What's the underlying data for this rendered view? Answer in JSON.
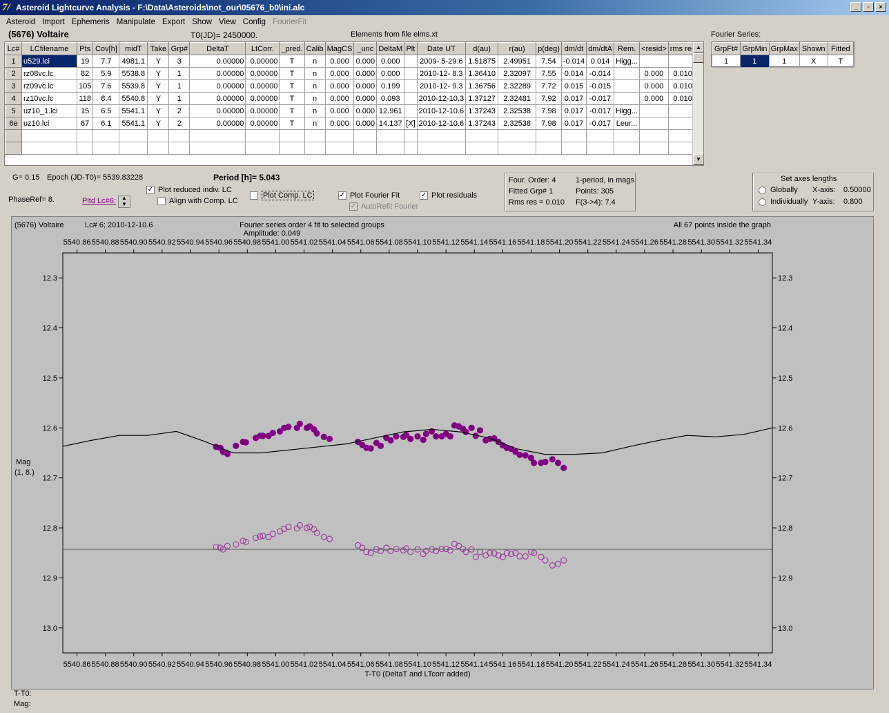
{
  "window": {
    "title": "Asteroid Lightcurve Analysis - F:\\Data\\Asteroids\\not_our\\05676_b0\\ini.alc"
  },
  "menu": [
    "Asteroid",
    "Import",
    "Ephemeris",
    "Manipulate",
    "Export",
    "Show",
    "View",
    "Config",
    "FourierFit"
  ],
  "header": {
    "asteroid": "(5676) Voltaire",
    "t0": "T0(JD)= 2450000.",
    "elements": "Elements from file elms.xt",
    "fourier_label": "Fourier Series:"
  },
  "table": {
    "columns": [
      "Lc#",
      "LCfilename",
      "Pts",
      "Cov[h]",
      "midT",
      "Take",
      "Grp#",
      "DeltaT",
      "LtCorr.",
      "_pred.",
      "Calib",
      "MagCS",
      "_unc",
      "DeltaM",
      "Plt",
      "Date UT",
      "d(au)",
      "r(au)",
      "p(deg)",
      "dm/dt",
      "dm/dtA",
      "Rem.",
      "<resid>",
      "rms res"
    ],
    "rows": [
      [
        "1",
        "u529.lci",
        "19",
        "7.7",
        "4981.1",
        "Y",
        "3",
        "0.00000",
        "0.00000",
        "T",
        "n",
        "0.000",
        "0.000",
        "0.000",
        "",
        "2009- 5-29.6",
        "1.51875",
        "2.49951",
        "7.54",
        "-0.014",
        "0.014",
        "Higg...",
        "",
        ""
      ],
      [
        "2",
        "rz08vc.lc",
        "82",
        "5.9",
        "5538.8",
        "Y",
        "1",
        "0.00000",
        "0.00000",
        "T",
        "n",
        "0.000",
        "0.000",
        "0.000",
        "",
        "2010-12- 8.3",
        "1.36410",
        "2.32097",
        "7.55",
        "0.014",
        "-0.014",
        "",
        "0.000",
        "0.010"
      ],
      [
        "3",
        "rz09vc.lc",
        "105",
        "7.6",
        "5539.8",
        "Y",
        "1",
        "0.00000",
        "0.00000",
        "T",
        "n",
        "0.000",
        "0.000",
        "0.199",
        "",
        "2010-12- 9.3",
        "1.36756",
        "2.32289",
        "7.72",
        "0.015",
        "-0.015",
        "",
        "0.000",
        "0.010"
      ],
      [
        "4",
        "rz10vc.lc",
        "118",
        "8.4",
        "5540.8",
        "Y",
        "1",
        "0.00000",
        "0.00000",
        "T",
        "n",
        "0.000",
        "0.000",
        "0.093",
        "",
        "2010-12-10.3",
        "1.37127",
        "2.32481",
        "7.92",
        "0.017",
        "-0.017",
        "",
        "0.000",
        "0.010"
      ],
      [
        "5",
        "uz10_1.lci",
        "15",
        "6.5",
        "5541.1",
        "Y",
        "2",
        "0.00000",
        "0.00000",
        "T",
        "n",
        "0.000",
        "0.000",
        "12.961",
        "",
        "2010-12-10.6",
        "1.37243",
        "2.32538",
        "7.98",
        "0.017",
        "-0.017",
        "Higg...",
        "",
        ""
      ],
      [
        "6e",
        "uz10.lci",
        "67",
        "6.1",
        "5541.1",
        "Y",
        "2",
        "0.00000",
        "0.00000",
        "T",
        "n",
        "0.000",
        "0.000",
        "14.137",
        "[X]",
        "2010-12-10.6",
        "1.37243",
        "2.32538",
        "7.98",
        "0.017",
        "-0.017",
        "Leur...",
        "",
        ""
      ]
    ]
  },
  "fourier_table": {
    "columns": [
      "GrpFt#",
      "GrpMin",
      "GrpMax",
      "Shown",
      "Fitted"
    ],
    "row": [
      "1",
      "1",
      "1",
      "X",
      "T"
    ]
  },
  "controls": {
    "g": "G= 0.15",
    "epoch": "Epoch (JD-T0)= 5539.83228",
    "period": "Period [h]= 5.043",
    "phaseref": "PhaseRef= 8.",
    "pltd_lc": "Pltd Lc#6:",
    "plot_reduced": "Plot reduced indiv. LC",
    "align_comp": "Align with Comp. LC",
    "plot_comp": "Plot Comp. LC",
    "plot_fourier": "Plot Fourier Fit",
    "autorefit": "AutoRefit Fourier",
    "plot_residuals": "Plot residuals"
  },
  "fit_info": {
    "order": "Four. Order:  4",
    "one_period": "1-period, in mags",
    "fitted_grp": "Fitted Grp# 1",
    "points": "Points: 305",
    "rms": "Rms res     = 0.010",
    "f34": "F(3->4):   7.4"
  },
  "axes_box": {
    "title": "Set axes lengths",
    "globally": "Globally",
    "individually": "Individually",
    "xaxis_label": "X-axis:",
    "xaxis_val": "0.50000",
    "yaxis_label": "Y-axis:",
    "yaxis_val": "0.800"
  },
  "plot_header": {
    "object": "(5676) Voltaire",
    "lc": "Lc# 6; 2010-12-10.6",
    "fit": "Fourier series order 4 fit to selected groups",
    "amp": "Amplitude: 0.049",
    "inside": "All 67 points inside the graph"
  },
  "plot_labels": {
    "ylabel1": "Mag",
    "ylabel2": "(1, 8.)",
    "xlabel": "T-T0 (DeltaT and LTcorr added)"
  },
  "status": {
    "t": "T-T0:",
    "mag": "Mag:"
  },
  "chart_data": {
    "type": "scatter",
    "xlabel": "T-T0 (DeltaT and LTcorr added)",
    "ylabel": "Mag",
    "xlim": [
      5540.85,
      5541.35
    ],
    "ylim": [
      12.25,
      13.05
    ],
    "y_inverted": true,
    "x_ticks": [
      "5540.86",
      "5540.88",
      "5540.90",
      "5540.92",
      "5540.94",
      "5540.96",
      "5540.98",
      "5541.00",
      "5541.02",
      "5541.04",
      "5541.06",
      "5541.08",
      "5541.10",
      "5541.12",
      "5541.14",
      "5541.16",
      "5541.18",
      "5541.20",
      "5541.22",
      "5541.24",
      "5541.26",
      "5541.28",
      "5541.30",
      "5541.32",
      "5541.34"
    ],
    "y_ticks": [
      "12.3",
      "12.4",
      "12.5",
      "12.6",
      "12.7",
      "12.8",
      "12.9",
      "13.0"
    ],
    "series": [
      {
        "name": "data",
        "color": "#800080",
        "filled": true,
        "x": [
          5540.958,
          5540.961,
          5540.963,
          5540.966,
          5540.972,
          5540.977,
          5540.979,
          5540.986,
          5540.989,
          5540.991,
          5540.995,
          5540.998,
          5541.003,
          5541.006,
          5541.009,
          5541.015,
          5541.017,
          5541.022,
          5541.024,
          5541.027,
          5541.029,
          5541.034,
          5541.038,
          5541.058,
          5541.061,
          5541.064,
          5541.067,
          5541.071,
          5541.074,
          5541.078,
          5541.081,
          5541.085,
          5541.09,
          5541.092,
          5541.095,
          5541.1,
          5541.104,
          5541.106,
          5541.11,
          5541.113,
          5541.117,
          5541.12,
          5541.123,
          5541.126,
          5541.129,
          5541.132,
          5541.134,
          5541.138,
          5541.141,
          5541.144,
          5541.148,
          5541.151,
          5541.154,
          5541.157,
          5541.16,
          5541.163,
          5541.166,
          5541.169,
          5541.172,
          5541.176,
          5541.18,
          5541.182,
          5541.187,
          5541.19,
          5541.195,
          5541.199,
          5541.203
        ],
        "y": [
          12.638,
          12.64,
          12.648,
          12.652,
          12.636,
          12.628,
          12.629,
          12.62,
          12.616,
          12.616,
          12.616,
          12.61,
          12.607,
          12.6,
          12.598,
          12.6,
          12.592,
          12.6,
          12.597,
          12.603,
          12.611,
          12.618,
          12.622,
          12.628,
          12.634,
          12.64,
          12.641,
          12.63,
          12.636,
          12.62,
          12.625,
          12.617,
          12.618,
          12.614,
          12.622,
          12.617,
          12.624,
          12.612,
          12.607,
          12.617,
          12.617,
          12.612,
          12.617,
          12.595,
          12.597,
          12.602,
          12.608,
          12.6,
          12.616,
          12.605,
          12.625,
          12.622,
          12.621,
          12.628,
          12.635,
          12.64,
          12.642,
          12.648,
          12.654,
          12.655,
          12.66,
          12.67,
          12.67,
          12.668,
          12.663,
          12.67,
          12.68
        ]
      },
      {
        "name": "residuals",
        "color": "#a040a0",
        "filled": false,
        "x": [
          5540.958,
          5540.961,
          5540.963,
          5540.966,
          5540.972,
          5540.977,
          5540.979,
          5540.986,
          5540.989,
          5540.991,
          5540.995,
          5540.998,
          5541.003,
          5541.006,
          5541.009,
          5541.015,
          5541.017,
          5541.022,
          5541.024,
          5541.027,
          5541.029,
          5541.034,
          5541.038,
          5541.058,
          5541.061,
          5541.064,
          5541.067,
          5541.071,
          5541.074,
          5541.078,
          5541.081,
          5541.085,
          5541.09,
          5541.092,
          5541.095,
          5541.1,
          5541.104,
          5541.106,
          5541.11,
          5541.113,
          5541.117,
          5541.12,
          5541.123,
          5541.126,
          5541.129,
          5541.132,
          5541.134,
          5541.138,
          5541.141,
          5541.144,
          5541.148,
          5541.151,
          5541.154,
          5541.157,
          5541.16,
          5541.163,
          5541.166,
          5541.169,
          5541.172,
          5541.176,
          5541.18,
          5541.182,
          5541.187,
          5541.19,
          5541.195,
          5541.199,
          5541.203
        ],
        "y": [
          12.838,
          12.84,
          12.843,
          12.836,
          12.833,
          12.826,
          12.828,
          12.82,
          12.817,
          12.816,
          12.818,
          12.812,
          12.807,
          12.802,
          12.798,
          12.801,
          12.795,
          12.8,
          12.798,
          12.803,
          12.81,
          12.818,
          12.822,
          12.835,
          12.84,
          12.848,
          12.85,
          12.843,
          12.846,
          12.84,
          12.846,
          12.842,
          12.845,
          12.841,
          12.848,
          12.843,
          12.852,
          12.846,
          12.843,
          12.846,
          12.842,
          12.842,
          12.845,
          12.832,
          12.836,
          12.842,
          12.848,
          12.843,
          12.858,
          12.848,
          12.855,
          12.85,
          12.851,
          12.855,
          12.858,
          12.85,
          12.852,
          12.85,
          12.857,
          12.857,
          12.848,
          12.85,
          12.858,
          12.865,
          12.875,
          12.872,
          12.865
        ]
      },
      {
        "name": "fourier_fit",
        "color": "#000000",
        "type": "line",
        "x": [
          5540.85,
          5540.87,
          5540.89,
          5540.91,
          5540.93,
          5540.95,
          5540.97,
          5540.99,
          5541.01,
          5541.03,
          5541.05,
          5541.07,
          5541.09,
          5541.11,
          5541.13,
          5541.15,
          5541.17,
          5541.19,
          5541.21,
          5541.23,
          5541.25,
          5541.27,
          5541.29,
          5541.31,
          5541.33,
          5541.35
        ],
        "y": [
          12.637,
          12.625,
          12.615,
          12.615,
          12.607,
          12.627,
          12.65,
          12.65,
          12.644,
          12.638,
          12.632,
          12.62,
          12.608,
          12.603,
          12.608,
          12.62,
          12.642,
          12.653,
          12.653,
          12.65,
          12.637,
          12.625,
          12.615,
          12.618,
          12.613,
          12.6
        ]
      },
      {
        "name": "zero_residual",
        "color": "#606060",
        "type": "hline",
        "y": [
          12.843
        ]
      }
    ]
  }
}
